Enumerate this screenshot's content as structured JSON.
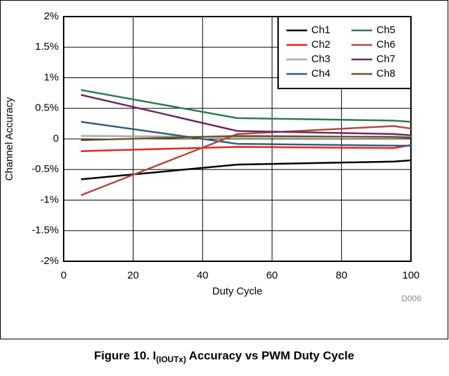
{
  "chart_data": {
    "type": "line",
    "x_label": "Duty Cycle",
    "y_label": "Channel Accuracy",
    "code": "D006",
    "caption": [
      "Figure 10. I",
      "(IOUTx)",
      " Accuracy vs PWM Duty Cycle"
    ],
    "x": [
      5,
      50,
      95,
      100
    ],
    "xlim": [
      0,
      100
    ],
    "xticks": [
      0,
      20,
      40,
      60,
      80,
      100
    ],
    "ylim": [
      -2,
      2
    ],
    "yticks": [
      {
        "value": -2,
        "label": "-2%"
      },
      {
        "value": -1.5,
        "label": "-1.5%"
      },
      {
        "value": -1,
        "label": "-1%"
      },
      {
        "value": -0.5,
        "label": "-0.5%"
      },
      0,
      {
        "value": 0.5,
        "label": "0.5%"
      },
      {
        "value": 1,
        "label": "1%"
      },
      {
        "value": 1.5,
        "label": "1.5%"
      },
      {
        "value": 2,
        "label": "2%"
      }
    ],
    "grid": true,
    "legend": "upper right",
    "series": [
      {
        "name": "Ch1",
        "color": "#000000",
        "values": [
          -0.66,
          -0.42,
          -0.37,
          -0.35
        ]
      },
      {
        "name": "Ch2",
        "color": "#e8221c",
        "values": [
          -0.2,
          -0.13,
          -0.15,
          -0.1
        ]
      },
      {
        "name": "Ch3",
        "color": "#a8a8a8",
        "values": [
          0.05,
          0.03,
          0.04,
          0.03
        ]
      },
      {
        "name": "Ch4",
        "color": "#2e5f7a",
        "values": [
          0.28,
          -0.08,
          -0.11,
          -0.11
        ]
      },
      {
        "name": "Ch5",
        "color": "#2e7a4e",
        "values": [
          0.8,
          0.34,
          0.3,
          0.28
        ]
      },
      {
        "name": "Ch6",
        "color": "#b04a40",
        "values": [
          -0.92,
          0.08,
          0.21,
          0.17
        ]
      },
      {
        "name": "Ch7",
        "color": "#6a2a5e",
        "values": [
          0.72,
          0.13,
          0.08,
          0.06
        ]
      },
      {
        "name": "Ch8",
        "color": "#6a5228",
        "values": [
          -0.02,
          0.05,
          0.03,
          0.02
        ]
      }
    ]
  }
}
